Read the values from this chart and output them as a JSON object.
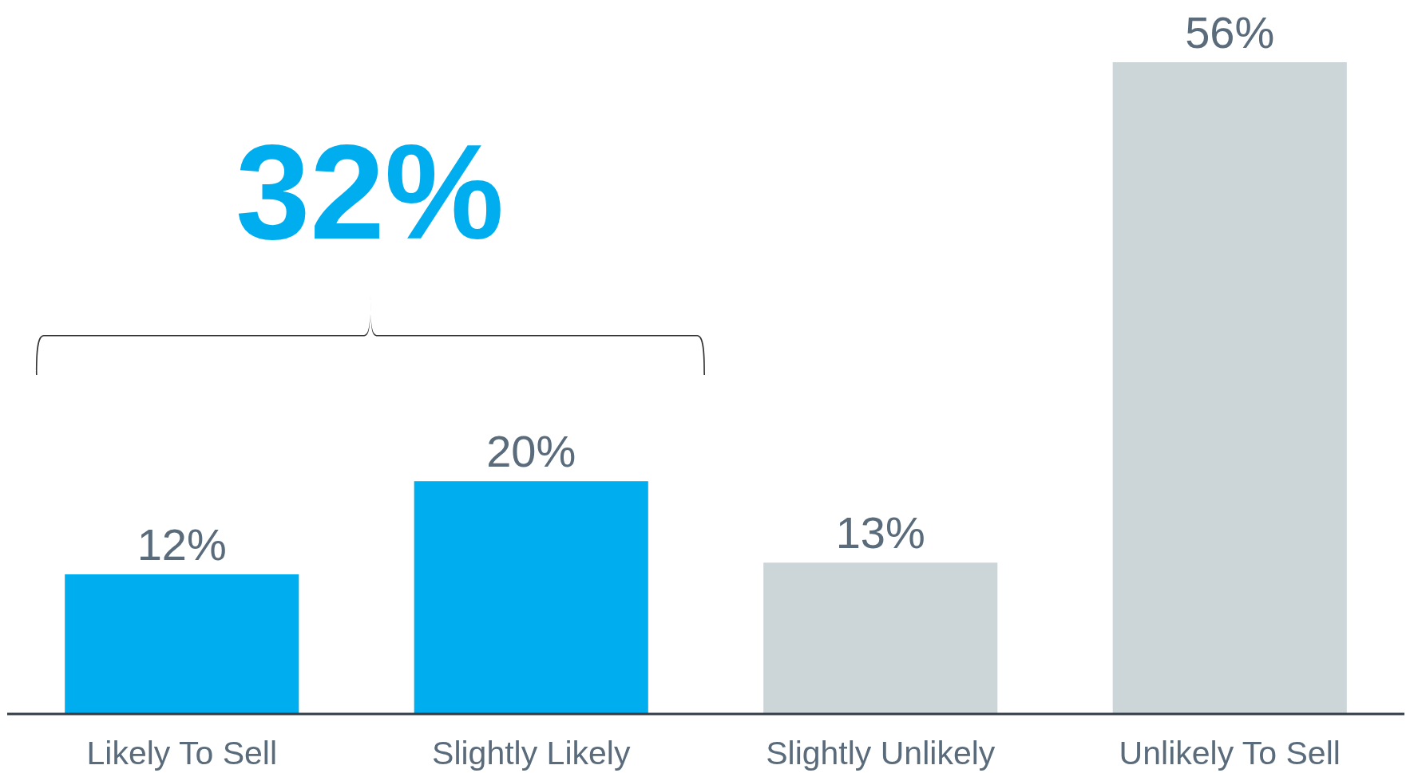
{
  "chart_data": {
    "type": "bar",
    "categories": [
      "Likely To Sell",
      "Slightly Likely",
      "Slightly Unlikely",
      "Unlikely To Sell"
    ],
    "values": [
      12,
      20,
      13,
      56
    ],
    "colors": [
      "#00aeef",
      "#00aeef",
      "#ccd5d8",
      "#ccd5d8"
    ],
    "value_labels": [
      "12%",
      "20%",
      "13%",
      "56%"
    ],
    "annotations": [
      "32%"
    ]
  }
}
